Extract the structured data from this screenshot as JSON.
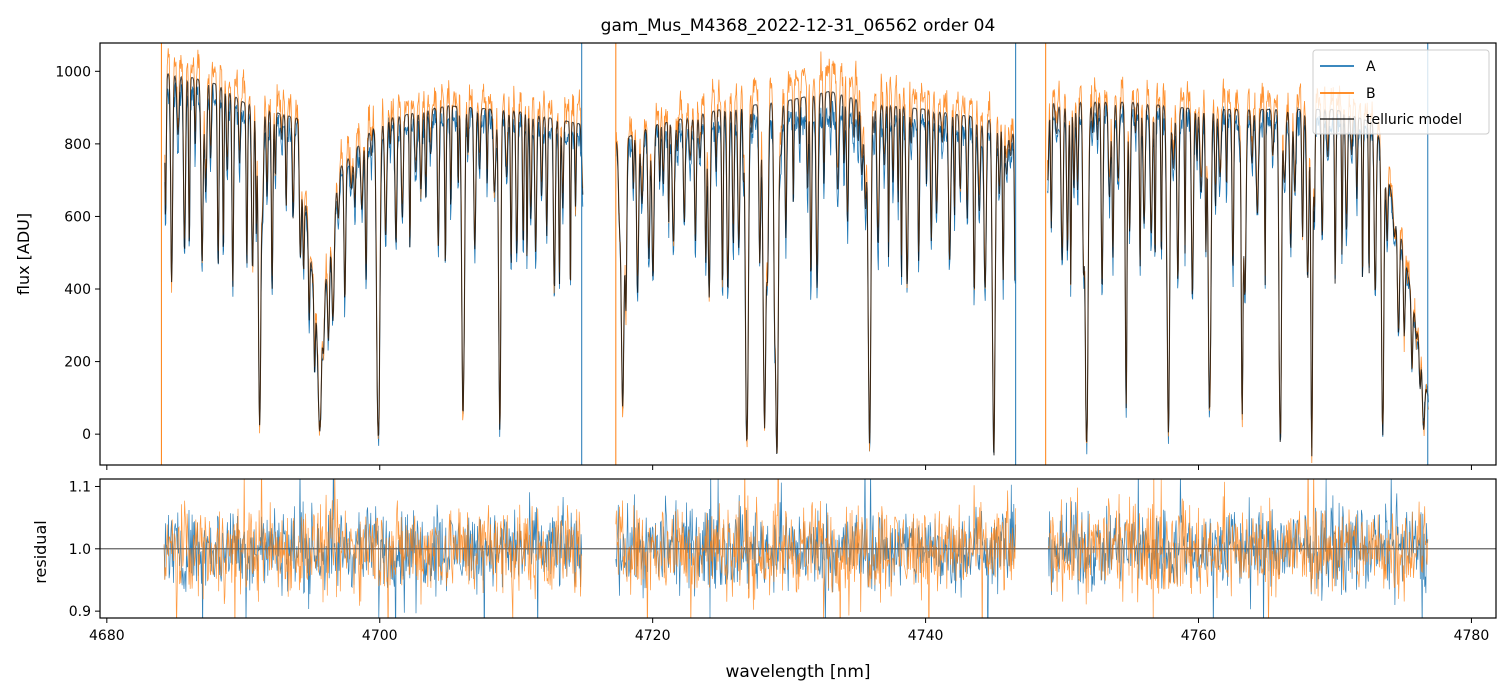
{
  "figure": {
    "title": "gam_Mus_M4368_2022-12-31_06562  order 04",
    "xlabel": "wavelength [nm]"
  },
  "colors": {
    "A": "#1f77b4",
    "B": "#ff7f0e",
    "model": "#000000",
    "refline": "#555555"
  },
  "chart_data": [
    {
      "type": "line",
      "title": "gam_Mus_M4368_2022-12-31_06562  order 04",
      "xlabel": "",
      "ylabel": "flux [ADU]",
      "xlim": [
        4679.5,
        4781.8
      ],
      "ylim": [
        -85,
        1078
      ],
      "xticks": [
        4680,
        4700,
        4720,
        4740,
        4760,
        4780
      ],
      "yticks": [
        0,
        200,
        400,
        600,
        800,
        1000
      ],
      "legend": {
        "placement": "top-right",
        "entries": [
          "A",
          "B",
          "telluric model"
        ]
      },
      "gaps": [
        [
          4714.9,
          4717.3
        ],
        [
          4746.6,
          4748.9
        ]
      ],
      "spikes": [
        4684.0,
        4714.8,
        4717.3,
        4746.6,
        4748.8,
        4776.8
      ],
      "series": [
        {
          "name": "A",
          "x": [
            4684.3,
            4686,
            4688,
            4690,
            4692,
            4694,
            4695.5,
            4697,
            4700,
            4705,
            4710,
            4714.7,
            4717.4,
            4720,
            4725,
            4730,
            4733,
            4736,
            4740,
            4745,
            4746.5,
            4749,
            4755,
            4760,
            4765,
            4770,
            4773,
            4775,
            4776.8
          ],
          "y": [
            950,
            940,
            930,
            880,
            850,
            840,
            250,
            700,
            830,
            870,
            860,
            820,
            780,
            820,
            850,
            860,
            880,
            860,
            850,
            830,
            800,
            880,
            880,
            860,
            860,
            860,
            830,
            500,
            100
          ]
        },
        {
          "name": "B",
          "x": [
            4684.3,
            4686,
            4688,
            4690,
            4692,
            4694,
            4695.5,
            4697,
            4700,
            4705,
            4710,
            4714.7,
            4717.4,
            4720,
            4725,
            4730,
            4733,
            4736,
            4740,
            4745,
            4746.5,
            4749,
            4755,
            4760,
            4765,
            4770,
            4773,
            4775,
            4776.8
          ],
          "y": [
            1040,
            1030,
            1000,
            950,
            930,
            900,
            270,
            760,
            900,
            940,
            920,
            890,
            830,
            880,
            940,
            980,
            1010,
            960,
            940,
            900,
            860,
            950,
            950,
            930,
            930,
            930,
            880,
            540,
            110
          ]
        },
        {
          "name": "telluric model",
          "x": [
            4684.3,
            4686,
            4688,
            4690,
            4692,
            4694,
            4695.5,
            4697,
            4700,
            4705,
            4710,
            4714.7,
            4717.4,
            4720,
            4725,
            4730,
            4733,
            4736,
            4740,
            4745,
            4746.5,
            4749,
            4755,
            4760,
            4765,
            4770,
            4773,
            4775,
            4776.8
          ],
          "y": [
            995,
            985,
            965,
            915,
            890,
            870,
            260,
            730,
            865,
            905,
            890,
            855,
            805,
            850,
            895,
            920,
            945,
            910,
            895,
            865,
            830,
            915,
            915,
            895,
            895,
            895,
            855,
            520,
            105
          ]
        }
      ],
      "absorption_lines": [
        4691.2,
        4695.6,
        4699.9,
        4706.1,
        4708.8,
        4717.8,
        4726.9,
        4728.2,
        4729.1,
        4735.9,
        4745.0,
        4751.8,
        4754.7,
        4757.8,
        4760.8,
        4763.2,
        4766.0,
        4768.3,
        4773.5,
        4776.5
      ]
    },
    {
      "type": "line",
      "title": "",
      "xlabel": "wavelength [nm]",
      "ylabel": "residual",
      "xlim": [
        4679.5,
        4781.8
      ],
      "ylim": [
        0.889,
        1.112
      ],
      "xticks": [
        4680,
        4700,
        4720,
        4740,
        4760,
        4780
      ],
      "yticks": [
        0.9,
        1.0,
        1.1
      ],
      "reference_line": 1.0,
      "segments": [
        [
          4684.2,
          4714.8
        ],
        [
          4717.3,
          4746.6
        ],
        [
          4749.0,
          4776.8
        ]
      ],
      "series": [
        {
          "name": "A",
          "center": 1.0,
          "spread": 0.04
        },
        {
          "name": "B",
          "center": 1.0,
          "spread": 0.045
        }
      ]
    }
  ]
}
